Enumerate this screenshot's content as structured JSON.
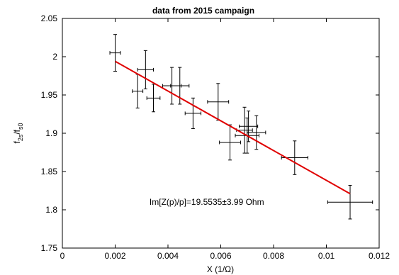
{
  "chart_data": {
    "type": "scatter",
    "title": "data from 2015 campaign",
    "xlabel": "X (1/Ω)",
    "ylabel_parts": {
      "f1": "f",
      "sub1": "2s",
      "slash": "/f",
      "sub2": "s0"
    },
    "xlim": [
      0,
      0.012
    ],
    "ylim": [
      1.75,
      2.05
    ],
    "xticks": [
      0,
      0.002,
      0.004,
      0.006,
      0.008,
      0.01,
      0.012
    ],
    "xtick_labels": [
      "0",
      "0.002",
      "0.004",
      "0.006",
      "0.008",
      "0.01",
      "0.012"
    ],
    "yticks": [
      1.75,
      1.8,
      1.85,
      1.9,
      1.95,
      2.0,
      2.05
    ],
    "ytick_labels": [
      "1.75",
      "1.8",
      "1.85",
      "1.9",
      "1.95",
      "2",
      "2.05"
    ],
    "grid": false,
    "series": [
      {
        "points": [
          {
            "x": 0.002,
            "y": 2.005,
            "xerr": 0.0002,
            "yerr": 0.024
          },
          {
            "x": 0.00285,
            "y": 1.955,
            "xerr": 0.0002,
            "yerr": 0.022
          },
          {
            "x": 0.00315,
            "y": 1.983,
            "xerr": 0.0003,
            "yerr": 0.025
          },
          {
            "x": 0.00345,
            "y": 1.946,
            "xerr": 0.00025,
            "yerr": 0.018
          },
          {
            "x": 0.00415,
            "y": 1.962,
            "xerr": 0.00035,
            "yerr": 0.024
          },
          {
            "x": 0.00445,
            "y": 1.962,
            "xerr": 0.00035,
            "yerr": 0.024
          },
          {
            "x": 0.00495,
            "y": 1.926,
            "xerr": 0.0003,
            "yerr": 0.02
          },
          {
            "x": 0.0059,
            "y": 1.941,
            "xerr": 0.0004,
            "yerr": 0.024
          },
          {
            "x": 0.00635,
            "y": 1.888,
            "xerr": 0.0004,
            "yerr": 0.023
          },
          {
            "x": 0.0069,
            "y": 1.904,
            "xerr": 0.0003,
            "yerr": 0.03
          },
          {
            "x": 0.007,
            "y": 1.897,
            "xerr": 0.00045,
            "yerr": 0.023
          },
          {
            "x": 0.00705,
            "y": 1.909,
            "xerr": 0.00035,
            "yerr": 0.02
          },
          {
            "x": 0.00735,
            "y": 1.901,
            "xerr": 0.00035,
            "yerr": 0.022
          },
          {
            "x": 0.0088,
            "y": 1.868,
            "xerr": 0.0005,
            "yerr": 0.022
          },
          {
            "x": 0.0109,
            "y": 1.81,
            "xerr": 0.00085,
            "yerr": 0.022
          }
        ],
        "color": "#000000"
      }
    ],
    "fit_line": {
      "x": [
        0.002,
        0.0109
      ],
      "y": [
        1.994,
        1.821
      ],
      "color": "#e00000"
    },
    "annotation": {
      "text": "Im[Z(p)/p]=19.5535±3.99 Ohm",
      "x": 0.0033,
      "y": 1.81
    }
  }
}
